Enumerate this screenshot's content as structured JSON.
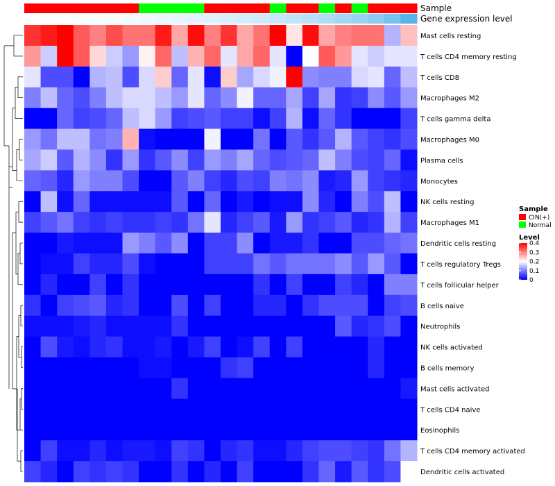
{
  "chart_data": {
    "type": "heatmap",
    "color_scale": {
      "low": "#0000FF",
      "mid": "#FFFFFF",
      "high": "#FF0000",
      "min": 0,
      "mid_value": 0.2,
      "max": 0.4
    },
    "annotation_rows": [
      {
        "label": "Sample",
        "values": [
          "CIN(+)",
          "CIN(+)",
          "CIN(+)",
          "CIN(+)",
          "CIN(+)",
          "CIN(+)",
          "CIN(+)",
          "Normal",
          "Normal",
          "Normal",
          "Normal",
          "CIN(+)",
          "CIN(+)",
          "CIN(+)",
          "CIN(+)",
          "Normal",
          "CIN(+)",
          "CIN(+)",
          "Normal",
          "CIN(+)",
          "Normal",
          "CIN(+)",
          "CIN(+)",
          "CIN(+)"
        ]
      },
      {
        "label": "Gene expression level",
        "values": [
          0.0,
          0.01,
          0.02,
          0.03,
          0.04,
          0.05,
          0.07,
          0.09,
          0.11,
          0.13,
          0.16,
          0.19,
          0.22,
          0.25,
          0.28,
          0.32,
          0.36,
          0.41,
          0.47,
          0.53,
          0.6,
          0.68,
          0.8,
          1.0
        ]
      }
    ],
    "rows": [
      "Mast cells resting",
      "T cells CD4 memory resting",
      "T cells CD8",
      "Macrophages M2",
      "T cells gamma delta",
      "Macrophages M0",
      "Plasma cells",
      "Monocytes",
      "NK cells resting",
      "Macrophages M1",
      "Dendritic cells resting",
      "T cells regulatory  Tregs",
      "T cells follicular helper",
      "B cells naive",
      "Neutrophils",
      "NK cells activated",
      "B cells memory",
      "Mast cells activated",
      "T cells CD4 naive",
      "Eosinophils",
      "T cells CD4 memory activated",
      "Dendritic cells activated"
    ],
    "values": [
      [
        0.36,
        0.38,
        0.4,
        0.33,
        0.3,
        0.34,
        0.31,
        0.31,
        0.38,
        0.27,
        0.39,
        0.3,
        0.36,
        0.27,
        0.31,
        0.4,
        0.22,
        0.39,
        0.27,
        0.3,
        0.31,
        0.31,
        0.14,
        0.25
      ],
      [
        0.28,
        0.16,
        0.4,
        0.33,
        0.23,
        0.16,
        0.12,
        0.21,
        0.32,
        0.15,
        0.26,
        0.32,
        0.18,
        0.27,
        0.32,
        0.18,
        0.0,
        0.2,
        0.33,
        0.28,
        0.18,
        0.16,
        0.18,
        0.18
      ],
      [
        0.18,
        0.06,
        0.06,
        0.0,
        0.14,
        0.15,
        0.06,
        0.17,
        0.24,
        0.08,
        0.18,
        0.01,
        0.24,
        0.13,
        0.17,
        0.19,
        0.4,
        0.11,
        0.1,
        0.1,
        0.17,
        0.18,
        0.08,
        0.15
      ],
      [
        0.1,
        0.15,
        0.08,
        0.06,
        0.1,
        0.15,
        0.17,
        0.17,
        0.15,
        0.12,
        0.18,
        0.08,
        0.11,
        0.19,
        0.08,
        0.08,
        0.13,
        0.05,
        0.13,
        0.04,
        0.05,
        0.11,
        0.07,
        0.12
      ],
      [
        0.0,
        0.0,
        0.08,
        0.05,
        0.06,
        0.08,
        0.15,
        0.17,
        0.12,
        0.05,
        0.06,
        0.07,
        0.05,
        0.05,
        0.01,
        0.05,
        0.14,
        0.01,
        0.08,
        0.04,
        0.0,
        0.0,
        0.0,
        0.05
      ],
      [
        0.12,
        0.09,
        0.15,
        0.15,
        0.09,
        0.1,
        0.26,
        0.01,
        0.0,
        0.0,
        0.0,
        0.19,
        0.0,
        0.0,
        0.09,
        0.0,
        0.07,
        0.04,
        0.07,
        0.14,
        0.07,
        0.05,
        0.04,
        0.06
      ],
      [
        0.13,
        0.16,
        0.07,
        0.14,
        0.11,
        0.04,
        0.12,
        0.04,
        0.07,
        0.11,
        0.05,
        0.12,
        0.1,
        0.13,
        0.08,
        0.06,
        0.07,
        0.08,
        0.15,
        0.1,
        0.06,
        0.05,
        0.08,
        0.01
      ],
      [
        0.08,
        0.07,
        0.03,
        0.12,
        0.1,
        0.1,
        0.06,
        0.0,
        0.0,
        0.07,
        0.1,
        0.05,
        0.03,
        0.06,
        0.05,
        0.1,
        0.09,
        0.11,
        0.02,
        0.03,
        0.12,
        0.05,
        0.04,
        0.03
      ],
      [
        0.0,
        0.15,
        0.01,
        0.08,
        0.01,
        0.01,
        0.01,
        0.01,
        0.01,
        0.07,
        0.0,
        0.08,
        0.0,
        0.02,
        0.0,
        0.01,
        0.01,
        0.11,
        0.03,
        0.0,
        0.1,
        0.06,
        0.15,
        0.0
      ],
      [
        0.05,
        0.07,
        0.09,
        0.05,
        0.04,
        0.05,
        0.04,
        0.04,
        0.05,
        0.04,
        0.09,
        0.18,
        0.03,
        0.05,
        0.07,
        0.02,
        0.12,
        0.04,
        0.05,
        0.07,
        0.03,
        0.04,
        0.14,
        0.05
      ],
      [
        0.0,
        0.0,
        0.02,
        0.01,
        0.01,
        0.01,
        0.12,
        0.1,
        0.07,
        0.11,
        0.0,
        0.05,
        0.05,
        0.11,
        0.0,
        0.02,
        0.02,
        0.04,
        0.0,
        0.0,
        0.06,
        0.06,
        0.08,
        0.09
      ],
      [
        0.0,
        0.01,
        0.01,
        0.05,
        0.03,
        0.03,
        0.06,
        0.01,
        0.0,
        0.0,
        0.0,
        0.05,
        0.05,
        0.05,
        0.09,
        0.07,
        0.09,
        0.09,
        0.09,
        0.11,
        0.07,
        0.12,
        0.07,
        0.0
      ],
      [
        0.0,
        0.03,
        0.0,
        0.0,
        0.05,
        0.0,
        0.04,
        0.0,
        0.0,
        0.0,
        0.0,
        0.0,
        0.0,
        0.0,
        0.04,
        0.0,
        0.05,
        0.0,
        0.0,
        0.05,
        0.03,
        0.0,
        0.1,
        0.1
      ],
      [
        0.04,
        0.0,
        0.05,
        0.06,
        0.07,
        0.03,
        0.04,
        0.0,
        0.0,
        0.06,
        0.0,
        0.05,
        0.0,
        0.0,
        0.03,
        0.03,
        0.0,
        0.04,
        0.06,
        0.06,
        0.06,
        0.0,
        0.05,
        0.06
      ],
      [
        0.01,
        0.01,
        0.01,
        0.02,
        0.03,
        0.01,
        0.01,
        0.01,
        0.01,
        0.04,
        0.0,
        0.0,
        0.0,
        0.0,
        0.0,
        0.0,
        0.0,
        0.0,
        0.0,
        0.07,
        0.03,
        0.04,
        0.06,
        0.0
      ],
      [
        0.0,
        0.06,
        0.02,
        0.01,
        0.03,
        0.04,
        0.01,
        0.01,
        0.02,
        0.0,
        0.02,
        0.05,
        0.0,
        0.01,
        0.05,
        0.0,
        0.05,
        0.0,
        0.0,
        0.0,
        0.0,
        0.03,
        0.0,
        0.0
      ],
      [
        0.0,
        0.0,
        0.0,
        0.0,
        0.0,
        0.0,
        0.0,
        0.01,
        0.01,
        0.0,
        0.0,
        0.0,
        0.04,
        0.05,
        0.0,
        0.0,
        0.0,
        0.0,
        0.0,
        0.0,
        0.0,
        0.03,
        0.0,
        0.0
      ],
      [
        0.0,
        0.0,
        0.0,
        0.0,
        0.0,
        0.0,
        0.0,
        0.0,
        0.0,
        0.04,
        0.0,
        0.0,
        0.0,
        0.0,
        0.0,
        0.0,
        0.0,
        0.0,
        0.0,
        0.0,
        0.0,
        0.0,
        0.0,
        0.02
      ],
      [
        0.0,
        0.0,
        0.0,
        0.0,
        0.0,
        0.0,
        0.0,
        0.0,
        0.0,
        0.0,
        0.0,
        0.0,
        0.0,
        0.0,
        0.0,
        0.0,
        0.0,
        0.0,
        0.0,
        0.0,
        0.0,
        0.0,
        0.0,
        0.0
      ],
      [
        0.0,
        0.0,
        0.0,
        0.0,
        0.0,
        0.0,
        0.0,
        0.0,
        0.0,
        0.0,
        0.0,
        0.0,
        0.0,
        0.0,
        0.0,
        0.0,
        0.0,
        0.0,
        0.0,
        0.0,
        0.0,
        0.0,
        0.0,
        0.0
      ],
      [
        0.0,
        0.05,
        0.01,
        0.01,
        0.03,
        0.01,
        0.02,
        0.02,
        0.01,
        0.05,
        0.04,
        0.0,
        0.03,
        0.04,
        0.01,
        0.01,
        0.03,
        0.05,
        0.06,
        0.06,
        0.05,
        0.04,
        0.09,
        0.14
      ],
      [
        0.05,
        0.03,
        0.0,
        0.05,
        0.04,
        0.05,
        0.04,
        0.0,
        0.0,
        0.04,
        0.0,
        0.03,
        0.0,
        0.05,
        0.0,
        0.0,
        0.0,
        0.04,
        0.08,
        0.02,
        0.07,
        0.04,
        0.06,
        0.2
      ]
    ],
    "legend": {
      "sample_title": "Sample",
      "sample_items": [
        {
          "label": "CIN(+)",
          "color": "#FF0000"
        },
        {
          "label": "Normal",
          "color": "#00FF00"
        }
      ],
      "level_title": "Level",
      "level_ticks": [
        0.4,
        0.3,
        0.2,
        0.1,
        0
      ],
      "level_tick_labels": [
        "0.4",
        "0.3",
        "0.2",
        "0.1",
        "0"
      ]
    },
    "annotation_colors": {
      "CIN(+)": "#FF0000",
      "Normal": "#00FF00",
      "expr_low": "#FFFFFF",
      "expr_high": "#56B4E9"
    }
  }
}
